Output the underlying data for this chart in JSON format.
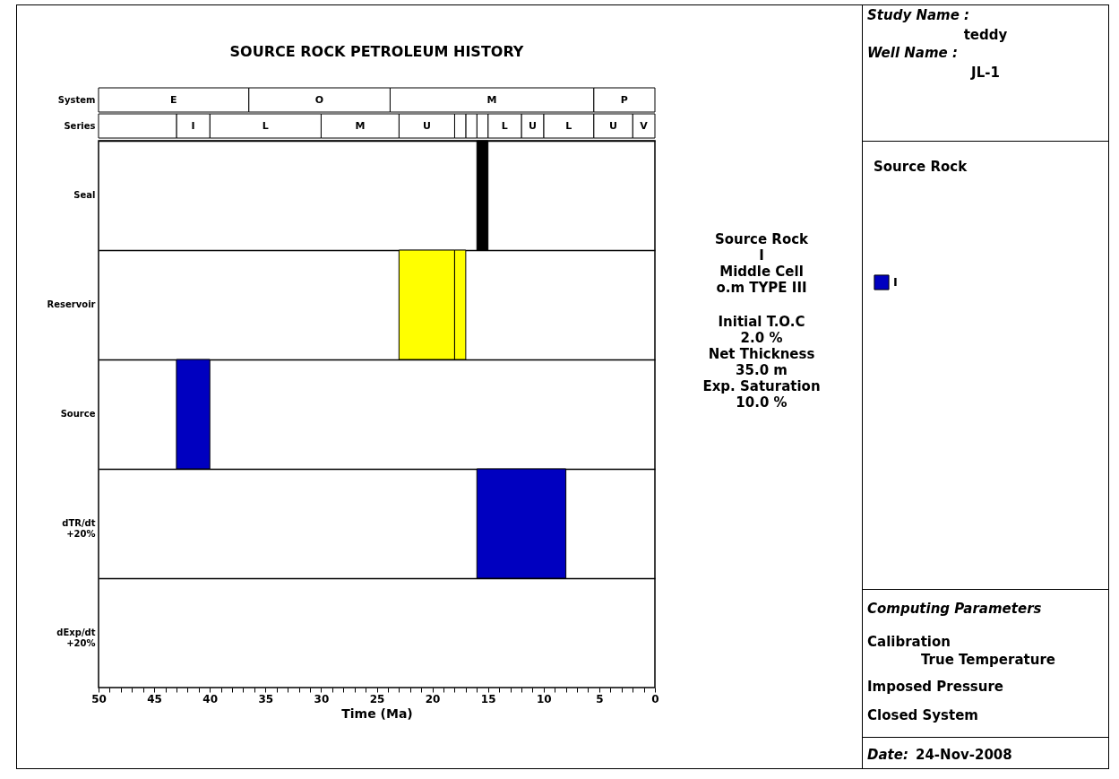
{
  "chart_data": [
    {
      "type": "bar",
      "orientation": "horizontal",
      "stacked": true,
      "title": "SOURCE ROCK PETROLEUM HISTORY",
      "categories": [
        "System"
      ],
      "xlim": [
        50,
        0
      ],
      "tick_labels": "y",
      "series": [
        {
          "name": "P",
          "color": "#ffffff",
          "values": [
            5.5
          ]
        },
        {
          "name": "M",
          "color": "#ffffff",
          "values": [
            18.3
          ]
        },
        {
          "name": "O",
          "color": "#ffffff",
          "values": [
            12.7
          ]
        },
        {
          "name": "E",
          "color": "#ffffff",
          "values": [
            13.5
          ]
        }
      ]
    },
    {
      "type": "bar",
      "orientation": "horizontal",
      "stacked": true,
      "categories": [
        "Series"
      ],
      "xlim": [
        50,
        0
      ],
      "tick_labels": "y",
      "series": [
        {
          "name": "V",
          "color": "#ffffff",
          "values": [
            2
          ]
        },
        {
          "name": "U",
          "color": "#ffffff",
          "values": [
            3.5
          ]
        },
        {
          "name": "L",
          "color": "#ffffff",
          "values": [
            4.5
          ]
        },
        {
          "name": "U",
          "color": "#ffffff",
          "values": [
            2
          ]
        },
        {
          "name": "L",
          "color": "#ffffff",
          "values": [
            3
          ]
        },
        {
          "color": "#ffffff",
          "values": [
            1
          ]
        },
        {
          "color": "#ffffff",
          "values": [
            1
          ]
        },
        {
          "color": "#ffffff",
          "values": [
            1
          ]
        },
        {
          "name": "U",
          "color": "#ffffff",
          "values": [
            5
          ]
        },
        {
          "name": "M",
          "color": "#ffffff",
          "values": [
            7
          ]
        },
        {
          "name": "L",
          "color": "#ffffff",
          "values": [
            10
          ]
        },
        {
          "name": "I",
          "color": "#ffffff",
          "values": [
            3
          ]
        },
        {
          "color": "#ffffff",
          "values": [
            7
          ]
        }
      ]
    },
    {
      "type": "bar",
      "orientation": "horizontal",
      "categories": [
        "Seal",
        "Reservoir",
        "Source",
        "dTR/dt +20%",
        "dExp/dt +20%"
      ],
      "xlim": [
        50,
        0
      ],
      "xlabel": "Time (Ma)",
      "grid": "y",
      "legend": "right",
      "legend_title": "Source Rock",
      "xticks": [
        0,
        {
          "value": 1,
          "label": null
        },
        {
          "value": 2,
          "label": null
        },
        {
          "value": 3,
          "label": null
        },
        {
          "value": 4,
          "label": null
        },
        5,
        {
          "value": 6,
          "label": null
        },
        {
          "value": 7,
          "label": null
        },
        {
          "value": 8,
          "label": null
        },
        {
          "value": 9,
          "label": null
        },
        10,
        {
          "value": 11,
          "label": null
        },
        {
          "value": 12,
          "label": null
        },
        {
          "value": 13,
          "label": null
        },
        {
          "value": 14,
          "label": null
        },
        15,
        {
          "value": 16,
          "label": null
        },
        {
          "value": 17,
          "label": null
        },
        {
          "value": 18,
          "label": null
        },
        {
          "value": 19,
          "label": null
        },
        20,
        {
          "value": 21,
          "label": null
        },
        {
          "value": 22,
          "label": null
        },
        {
          "value": 23,
          "label": null
        },
        {
          "value": 24,
          "label": null
        },
        25,
        {
          "value": 26,
          "label": null
        },
        {
          "value": 27,
          "label": null
        },
        {
          "value": 28,
          "label": null
        },
        {
          "value": 29,
          "label": null
        },
        30,
        {
          "value": 31,
          "label": null
        },
        {
          "value": 32,
          "label": null
        },
        {
          "value": 33,
          "label": null
        },
        {
          "value": 34,
          "label": null
        },
        35,
        {
          "value": 36,
          "label": null
        },
        {
          "value": 37,
          "label": null
        },
        {
          "value": 38,
          "label": null
        },
        {
          "value": 39,
          "label": null
        },
        40,
        {
          "value": 41,
          "label": null
        },
        {
          "value": 42,
          "label": null
        },
        {
          "value": 43,
          "label": null
        },
        {
          "value": 44,
          "label": null
        },
        45,
        {
          "value": 46,
          "label": null
        },
        {
          "value": 47,
          "label": null
        },
        {
          "value": 48,
          "label": null
        },
        {
          "value": 49,
          "label": null
        },
        50
      ],
      "series": [
        {
          "color": "#000000",
          "values": [
            1,
            null,
            null,
            null,
            null
          ],
          "base": [
            15,
            null,
            null,
            null,
            null
          ]
        },
        {
          "color": "#ffff00",
          "values": [
            null,
            5,
            null,
            null,
            null
          ],
          "base": [
            null,
            18,
            null,
            null,
            null
          ]
        },
        {
          "color": "#ffff00",
          "values": [
            null,
            1,
            null,
            null,
            null
          ],
          "base": [
            null,
            17,
            null,
            null,
            null
          ]
        },
        {
          "name": "I",
          "color": "#0000c0",
          "values": [
            null,
            null,
            3,
            8,
            null
          ],
          "base": [
            null,
            null,
            40,
            8,
            null
          ]
        }
      ],
      "annotations": [
        "Source Rock",
        "I",
        "Middle Cell",
        "o.m TYPE III",
        "Initial T.O.C",
        "2.0 %",
        "Net Thickness",
        "35.0 m",
        "Exp. Saturation",
        "10.0 %",
        "Study Name :",
        "teddy",
        "Well Name :",
        "JL-1",
        "Computing Parameters",
        "Calibration",
        "True Temperature",
        "Imposed Pressure",
        "Closed System",
        "Date:",
        "24-Nov-2008"
      ]
    }
  ]
}
